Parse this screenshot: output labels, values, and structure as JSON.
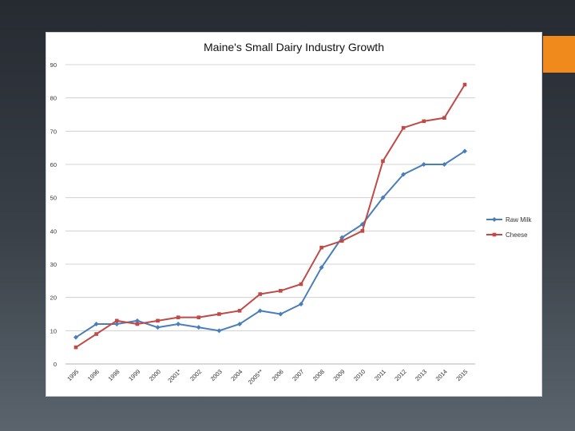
{
  "chart_data": {
    "type": "line",
    "title": "Maine's Small Dairy Industry Growth",
    "xlabel": "",
    "ylabel": "",
    "ylim": [
      0,
      90
    ],
    "yticks": [
      0,
      10,
      20,
      30,
      40,
      50,
      60,
      70,
      80,
      90
    ],
    "grid": true,
    "legend": "right",
    "categories": [
      "1995",
      "1996",
      "1998",
      "1999",
      "2000",
      "2001*",
      "2002",
      "2003",
      "2004",
      "2005**",
      "2006",
      "2007",
      "2008",
      "2009",
      "2010",
      "2011",
      "2012",
      "2013",
      "2014",
      "2015"
    ],
    "series": [
      {
        "name": "Raw Milk",
        "color": "#4a7ebb",
        "marker": "diamond",
        "values": [
          8,
          12,
          12,
          13,
          11,
          12,
          11,
          10,
          12,
          16,
          15,
          18,
          29,
          38,
          42,
          50,
          57,
          60,
          60,
          64
        ]
      },
      {
        "name": "Cheese",
        "color": "#be4b48",
        "marker": "square",
        "values": [
          5,
          9,
          13,
          12,
          13,
          14,
          14,
          15,
          16,
          21,
          22,
          24,
          35,
          37,
          40,
          61,
          71,
          73,
          74,
          84
        ]
      }
    ]
  }
}
